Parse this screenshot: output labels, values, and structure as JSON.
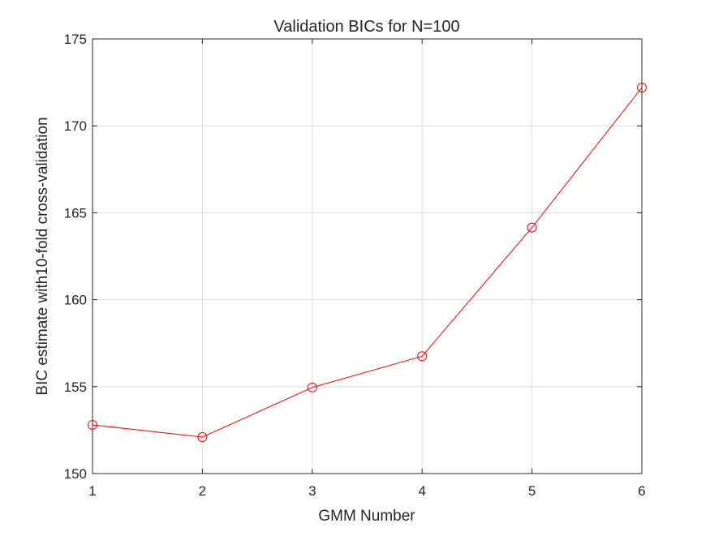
{
  "chart_data": {
    "type": "line",
    "title": "Validation BICs for N=100",
    "xlabel": "GMM Number",
    "ylabel": "BIC estimate with10-fold cross-validation",
    "xlim": [
      1,
      6
    ],
    "ylim": [
      150,
      175
    ],
    "xticks": [
      1,
      2,
      3,
      4,
      5,
      6
    ],
    "yticks": [
      150,
      155,
      160,
      165,
      170,
      175
    ],
    "grid": true,
    "series": [
      {
        "x": [
          1,
          2,
          3,
          4,
          5,
          6
        ],
        "values": [
          152.8,
          152.1,
          154.95,
          156.75,
          164.15,
          172.2
        ],
        "color": "#ff0000",
        "marker": "circle"
      }
    ]
  }
}
